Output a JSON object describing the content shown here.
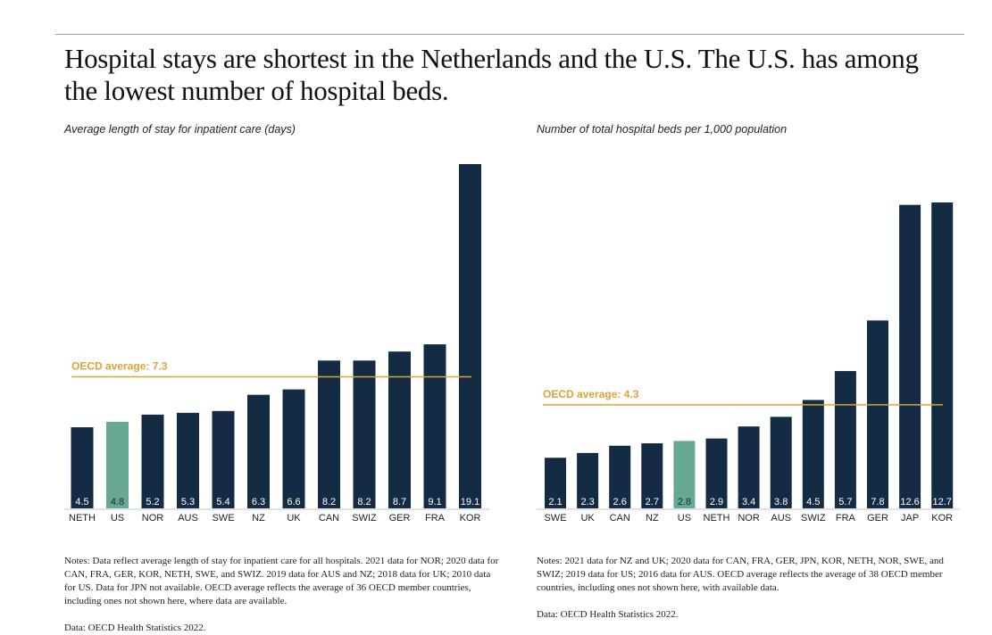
{
  "title": "Hospital stays are shortest in the Netherlands and the U.S. The U.S. has among the lowest number of hospital beds.",
  "colors": {
    "bar": "#142b44",
    "highlight": "#67a893",
    "average": "#d9a43a"
  },
  "chart_data": [
    {
      "type": "bar",
      "title": "Average length of stay for inpatient care (days)",
      "categories": [
        "NETH",
        "US",
        "NOR",
        "AUS",
        "SWE",
        "NZ",
        "UK",
        "CAN",
        "SWIZ",
        "GER",
        "FRA",
        "KOR"
      ],
      "values": [
        4.5,
        4.8,
        5.2,
        5.3,
        5.4,
        6.3,
        6.6,
        8.2,
        8.2,
        8.7,
        9.1,
        19.1
      ],
      "labels": [
        "4.5",
        "4.8",
        "5.2",
        "5.3",
        "5.4",
        "6.3",
        "6.6",
        "8.2",
        "8.2",
        "8.7",
        "9.1",
        "19.1"
      ],
      "highlight": "US",
      "average": {
        "value": 7.3,
        "label": "OECD average: 7.3"
      },
      "ylim": [
        0,
        19.1
      ],
      "notes": "Notes: Data reflect average length of stay for inpatient care for all hospitals. 2021 data for NOR; 2020 data for CAN, FRA, GER, KOR, NETH, SWE, and SWIZ. 2019 data for AUS and NZ; 2018 data for UK; 2010 data for US. Data for JPN not available. OECD average reflects the average of 36 OECD member countries, including ones not shown here, where data are available.",
      "source": "Data: OECD Health Statistics 2022."
    },
    {
      "type": "bar",
      "title": "Number of total hospital beds per 1,000 population",
      "categories": [
        "SWE",
        "UK",
        "CAN",
        "NZ",
        "US",
        "NETH",
        "NOR",
        "AUS",
        "SWIZ",
        "FRA",
        "GER",
        "JAP",
        "KOR"
      ],
      "values": [
        2.1,
        2.3,
        2.6,
        2.7,
        2.8,
        2.9,
        3.4,
        3.8,
        4.5,
        5.7,
        7.8,
        12.6,
        12.7
      ],
      "labels": [
        "2.1",
        "2.3",
        "2.6",
        "2.7",
        "2.8",
        "2.9",
        "3.4",
        "3.8",
        "4.5",
        "5.7",
        "7.8",
        "12.6",
        "12.7"
      ],
      "highlight": "US",
      "average": {
        "value": 4.3,
        "label": "OECD average: 4.3"
      },
      "ylim": [
        0,
        12.7
      ],
      "notes": "Notes: 2021 data for NZ and UK; 2020 data for CAN, FRA, GER, JPN, KOR, NETH, NOR, SWE, and SWIZ; 2019 data for US; 2016 data for AUS. OECD average reflects the average of 38 OECD member countries, including ones not shown here, with available data.",
      "source": "Data: OECD Health Statistics 2022."
    }
  ]
}
